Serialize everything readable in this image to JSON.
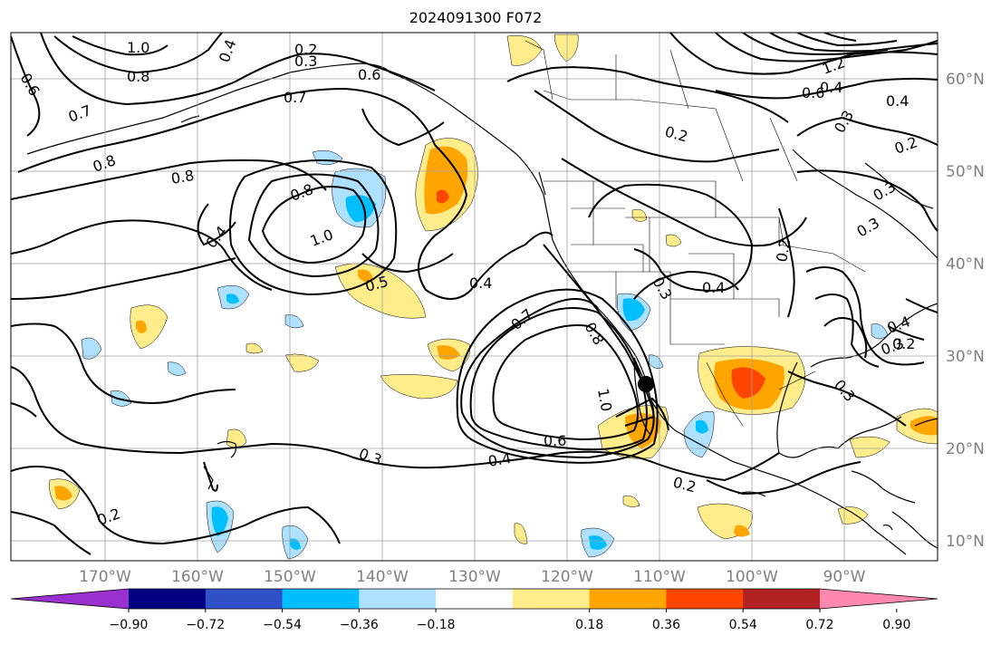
{
  "title": "2024091300 F072",
  "longitude_labels": [
    "170°W",
    "160°W",
    "150°W",
    "140°W",
    "130°W",
    "120°W",
    "110°W",
    "100°W",
    "90°W"
  ],
  "latitude_labels": [
    "60°N",
    "50°N",
    "40°N",
    "30°N",
    "20°N",
    "10°N"
  ],
  "colorbar": {
    "colors": [
      "#9b30d0",
      "#000080",
      "#3050c8",
      "#00bfff",
      "#aee0ff",
      "#ffffff",
      "#ffec8b",
      "#ffa500",
      "#ff4500",
      "#b22222",
      "#ff88b0"
    ],
    "tick_labels": [
      "−0.90",
      "−0.72",
      "−0.54",
      "−0.36",
      "−0.18",
      "0.18",
      "0.36",
      "0.54",
      "0.72",
      "0.90"
    ]
  },
  "contour_labels": [
    {
      "text": "1.0"
    },
    {
      "text": "0.8"
    },
    {
      "text": "0.6"
    },
    {
      "text": "0.4"
    },
    {
      "text": "0.2"
    },
    {
      "text": "0.3"
    },
    {
      "text": "0.6"
    },
    {
      "text": "0.7"
    },
    {
      "text": "0.7"
    },
    {
      "text": "0.8"
    },
    {
      "text": "0.8"
    },
    {
      "text": "0.8"
    },
    {
      "text": "1.0"
    },
    {
      "text": "0.4"
    },
    {
      "text": "0.5"
    },
    {
      "text": "0.4"
    },
    {
      "text": "0.7"
    },
    {
      "text": "0.8"
    },
    {
      "text": "1.0"
    },
    {
      "text": "0.6"
    },
    {
      "text": "0.4"
    },
    {
      "text": "0.3"
    },
    {
      "text": "0.2"
    },
    {
      "text": "0.2"
    },
    {
      "text": "0.2"
    },
    {
      "text": "0.3"
    },
    {
      "text": "0.4"
    },
    {
      "text": "0.2"
    },
    {
      "text": "0.4"
    },
    {
      "text": "0.3"
    },
    {
      "text": "0.4"
    },
    {
      "text": "0.3"
    },
    {
      "text": "0.2"
    },
    {
      "text": "0.3"
    },
    {
      "text": "1.2"
    },
    {
      "text": "0.6"
    },
    {
      "text": "0.4"
    },
    {
      "text": "0.3"
    },
    {
      "text": "0.3"
    },
    {
      "text": "0.2"
    }
  ]
}
